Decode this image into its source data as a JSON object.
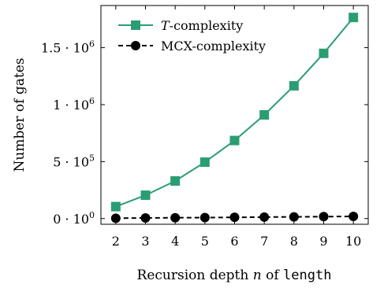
{
  "chart_data": {
    "type": "line",
    "xlabel": "Recursion depth n of length",
    "xlabel_parts": {
      "prefix": "Recursion depth ",
      "var": "n",
      "mid": " of ",
      "code": "length"
    },
    "ylabel": "Number of gates",
    "x": [
      2,
      3,
      4,
      5,
      6,
      7,
      8,
      9,
      10
    ],
    "xlim": [
      1.5,
      10.5
    ],
    "ylim": [
      -50000,
      1870000
    ],
    "yticks": [
      {
        "value": 0,
        "mant": "0",
        "exp": "0"
      },
      {
        "value": 500000,
        "mant": "5",
        "exp": "5"
      },
      {
        "value": 1000000,
        "mant": "1",
        "exp": "6"
      },
      {
        "value": 1500000,
        "mant": "1.5",
        "exp": "6"
      }
    ],
    "legend_position": "top-left",
    "series": [
      {
        "name": "T-complexity",
        "name_parts": {
          "var": "T",
          "rest": "-complexity"
        },
        "color": "#2a9d73",
        "style": "solid",
        "marker": "square",
        "values": [
          105000,
          205000,
          330000,
          495000,
          685000,
          910000,
          1165000,
          1450000,
          1765000
        ]
      },
      {
        "name": "MCX-complexity",
        "color": "#000000",
        "style": "dashed",
        "marker": "circle",
        "values": [
          3000,
          5000,
          7000,
          9000,
          11000,
          13000,
          15000,
          17000,
          19000
        ]
      }
    ]
  }
}
